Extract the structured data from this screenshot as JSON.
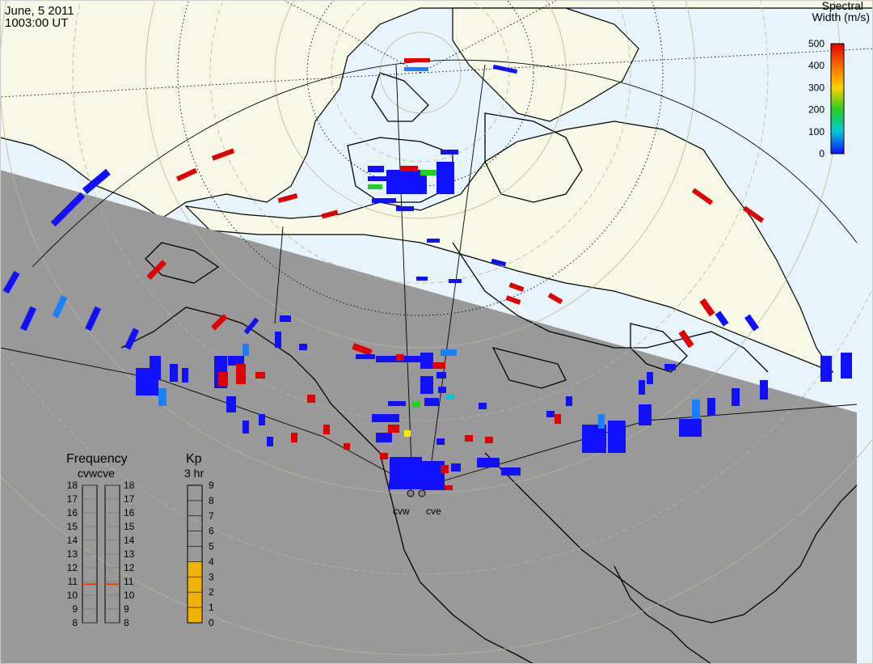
{
  "header": {
    "date": "June, 5 2011",
    "time": "1003:00 UT"
  },
  "colorbar": {
    "title_line1": "Spectral",
    "title_line2": "Width (m/s)",
    "ticks": [
      "500",
      "400",
      "300",
      "200",
      "100",
      "0"
    ],
    "colors": [
      "#e00000",
      "#ff6a00",
      "#ffd200",
      "#22d022",
      "#00c8d8",
      "#1010ff"
    ]
  },
  "frequency": {
    "title": "Frequency",
    "columns_label": "cvwcve",
    "ticks": [
      "18",
      "17",
      "16",
      "15",
      "14",
      "13",
      "12",
      "11",
      "10",
      "9",
      "8"
    ],
    "cvw_mhz": 10.8,
    "cve_mhz": 10.8,
    "marker_color": "#e04000"
  },
  "kp": {
    "title": "Kp",
    "subtitle": "3 hr",
    "ticks": [
      "9",
      "8",
      "7",
      "6",
      "5",
      "4",
      "3",
      "2",
      "1",
      "0"
    ],
    "value": 4,
    "fill_color": "#f0b400"
  },
  "radars": [
    {
      "id": "cvw",
      "label": "cvw"
    },
    {
      "id": "cve",
      "label": "cve"
    }
  ],
  "map": {
    "ocean_day": "#e8f4fb",
    "land_day": "#f8f8e6",
    "night_shade": "#999999",
    "coast_color": "#000000"
  }
}
